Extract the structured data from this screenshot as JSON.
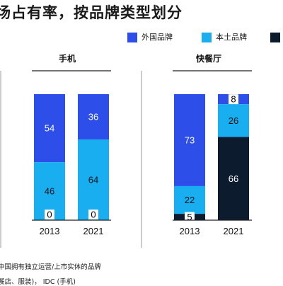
{
  "title": "场占有率，按品牌类型划分",
  "colors": {
    "foreign": "#2d4ee8",
    "local": "#19aef0",
    "third": "#0d1b2e",
    "divider": "#9a9a9a",
    "axis": "#222222"
  },
  "chart_data": [
    {
      "type": "bar",
      "stacked": true,
      "title": "手机",
      "categories": [
        "2013",
        "2021"
      ],
      "series": [
        {
          "name": "外国品牌",
          "values": [
            54,
            36
          ]
        },
        {
          "name": "本土品牌",
          "values": [
            46,
            64
          ]
        },
        {
          "name": "",
          "values": [
            0,
            0
          ]
        }
      ],
      "ylim": [
        0,
        100
      ]
    },
    {
      "type": "bar",
      "stacked": true,
      "title": "快餐厅",
      "categories": [
        "2013",
        "2021"
      ],
      "series": [
        {
          "name": "外国品牌",
          "values": [
            73,
            8
          ]
        },
        {
          "name": "本土品牌",
          "values": [
            22,
            26
          ]
        },
        {
          "name": "",
          "values": [
            5,
            66
          ]
        }
      ],
      "ylim": [
        0,
        100
      ]
    }
  ],
  "legend": [
    {
      "label": "外国品牌",
      "color_key": "foreign"
    },
    {
      "label": "本土品牌",
      "color_key": "local"
    },
    {
      "label": "",
      "color_key": "third"
    }
  ],
  "notes": [
    "中国拥有独立运营/上市实体的品牌",
    "餐店、服装)， IDC (手机)"
  ]
}
